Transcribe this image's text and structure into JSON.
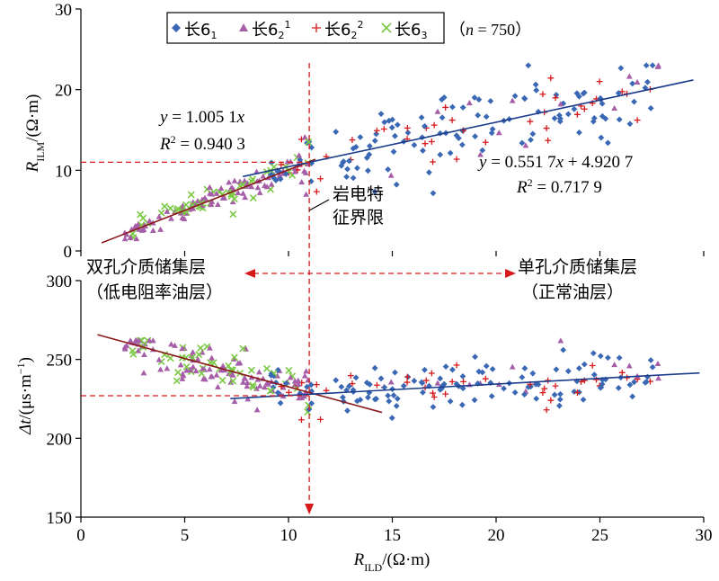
{
  "chart_data": [
    {
      "type": "scatter",
      "panel": "top",
      "xlim": [
        0,
        30
      ],
      "ylim": [
        0,
        30
      ],
      "x_ticks": [
        "0",
        "5",
        "10",
        "15",
        "20",
        "25",
        "30"
      ],
      "y_ticks": [
        "0",
        "10",
        "20",
        "30"
      ],
      "ylabel": {
        "main": "R",
        "sub": "ILM",
        "unit": "/(Ω·m)"
      },
      "legend": {
        "placement": "top",
        "entries": [
          {
            "name": "长6",
            "sub": "1",
            "sup": "",
            "color": "#3a68b4",
            "marker": "diamond"
          },
          {
            "name": "长6",
            "sub": "2",
            "sup": "1",
            "color": "#a65ea8",
            "marker": "triangle"
          },
          {
            "name": "长6",
            "sub": "2",
            "sup": "2",
            "color": "#d7191c",
            "marker": "plus"
          },
          {
            "name": "长6",
            "sub": "3",
            "sup": "",
            "color": "#7ac943",
            "marker": "x"
          }
        ],
        "note_prefix": "（",
        "note_var": "n",
        "note_value": " = 750",
        "note_suffix": "）"
      },
      "fits": [
        {
          "eq_var": "y",
          "eq_rest": " = 1.005 1",
          "eq_x": "x",
          "r2_label": "R",
          "r2_value": " = 0.940 3",
          "slope": 1.0051,
          "intercept": 0,
          "x_range": [
            1,
            11.3
          ],
          "color": "#8b1a1a"
        },
        {
          "eq_var": "y",
          "eq_rest": " = 0.551 7",
          "eq_x": "x",
          "eq_tail": " + 4.920 7",
          "r2_label": "R",
          "r2_value": " = 0.717 9",
          "slope": 0.5517,
          "intercept": 4.9207,
          "x_range": [
            7.8,
            29.5
          ],
          "color": "#1a3c8b"
        }
      ],
      "ref_x": 11,
      "ref_y": 11,
      "annotation_lines": [
        "岩电特",
        "征界限"
      ]
    },
    {
      "type": "scatter",
      "panel": "bottom",
      "xlim": [
        0,
        30
      ],
      "ylim": [
        150,
        300
      ],
      "x_ticks": [
        "0",
        "5",
        "10",
        "15",
        "20",
        "25",
        "30"
      ],
      "y_ticks": [
        "150",
        "200",
        "250",
        "300"
      ],
      "xlabel": {
        "main": "R",
        "sub": "ILD",
        "unit": "/(Ω·m)"
      },
      "ylabel": {
        "main": "Δt",
        "unit": "/(μs·m",
        "sup": "−1",
        "close": ")"
      },
      "fits": [
        {
          "slope": -3.6,
          "intercept": 268.6,
          "x_range": [
            0.8,
            14.5
          ],
          "color": "#8b1a1a"
        },
        {
          "slope": 0.72,
          "intercept": 220.0,
          "x_range": [
            7.2,
            29.8
          ],
          "color": "#1a3c8b"
        }
      ],
      "ref_x": 11,
      "ref_y": 227,
      "regions": {
        "left": [
          "双孔介质储集层",
          "（低电阻率油层）"
        ],
        "right": [
          "单孔介质储集层",
          "（正常油层）"
        ]
      }
    }
  ]
}
